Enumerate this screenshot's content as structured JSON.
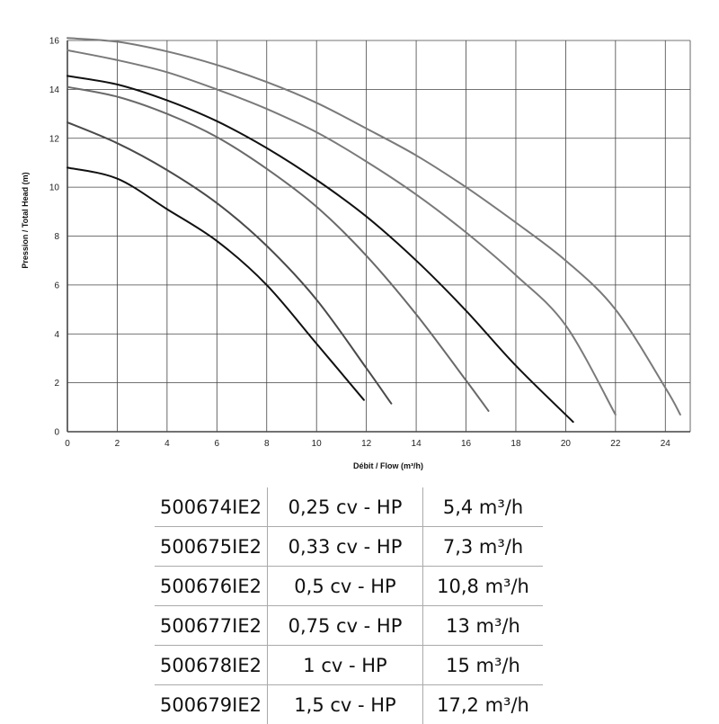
{
  "chart_data": {
    "type": "line",
    "title": "",
    "xlabel": "Débit / Flow (m³/h)",
    "ylabel": "Pression / Total Head (m)",
    "xlim": [
      0,
      25
    ],
    "ylim": [
      0,
      16.5
    ],
    "x_ticks": [
      "0",
      "2",
      "4",
      "6",
      "8",
      "10",
      "12",
      "14",
      "16",
      "18",
      "20",
      "22",
      "24"
    ],
    "y_ticks": [
      "0",
      "2",
      "4",
      "6",
      "8",
      "10",
      "12",
      "14",
      "16"
    ],
    "grid": true,
    "series": [
      {
        "color": "#111111",
        "points": [
          [
            0,
            10.8
          ],
          [
            2,
            10.35
          ],
          [
            4,
            9.1
          ],
          [
            6,
            7.8
          ],
          [
            8,
            6.0
          ],
          [
            10,
            3.6
          ],
          [
            11.9,
            1.3
          ]
        ]
      },
      {
        "color": "#4a4a4a",
        "points": [
          [
            0,
            12.65
          ],
          [
            2,
            11.8
          ],
          [
            4,
            10.7
          ],
          [
            6,
            9.35
          ],
          [
            8,
            7.6
          ],
          [
            10,
            5.4
          ],
          [
            12,
            2.6
          ],
          [
            13,
            1.15
          ]
        ]
      },
      {
        "color": "#6a6a6a",
        "points": [
          [
            0,
            14.1
          ],
          [
            2,
            13.7
          ],
          [
            4,
            13.0
          ],
          [
            6,
            12.05
          ],
          [
            8,
            10.75
          ],
          [
            10,
            9.2
          ],
          [
            12,
            7.2
          ],
          [
            14,
            4.8
          ],
          [
            16,
            2.1
          ],
          [
            16.9,
            0.85
          ]
        ]
      },
      {
        "color": "#111111",
        "points": [
          [
            0,
            14.55
          ],
          [
            2,
            14.2
          ],
          [
            4,
            13.55
          ],
          [
            6,
            12.7
          ],
          [
            8,
            11.6
          ],
          [
            10,
            10.3
          ],
          [
            12,
            8.8
          ],
          [
            14,
            7.0
          ],
          [
            16,
            4.95
          ],
          [
            18,
            2.7
          ],
          [
            20.3,
            0.4
          ]
        ]
      },
      {
        "color": "#7a7a7a",
        "points": [
          [
            0,
            15.6
          ],
          [
            2,
            15.2
          ],
          [
            4,
            14.7
          ],
          [
            6,
            14.0
          ],
          [
            8,
            13.2
          ],
          [
            10,
            12.25
          ],
          [
            12,
            11.05
          ],
          [
            14,
            9.7
          ],
          [
            16,
            8.15
          ],
          [
            18,
            6.4
          ],
          [
            20,
            4.35
          ],
          [
            22,
            0.7
          ]
        ]
      },
      {
        "color": "#7a7a7a",
        "points": [
          [
            0,
            16.1
          ],
          [
            2,
            15.95
          ],
          [
            4,
            15.55
          ],
          [
            6,
            15.0
          ],
          [
            8,
            14.3
          ],
          [
            10,
            13.45
          ],
          [
            12,
            12.4
          ],
          [
            14,
            11.3
          ],
          [
            16,
            10.0
          ],
          [
            18,
            8.55
          ],
          [
            20,
            7.0
          ],
          [
            22,
            5.0
          ],
          [
            24,
            1.8
          ],
          [
            24.6,
            0.7
          ]
        ]
      }
    ]
  },
  "table": {
    "rows": [
      {
        "ref": "500674IE2",
        "power": "0,25 cv - HP",
        "flow": "5,4 m³/h"
      },
      {
        "ref": "500675IE2",
        "power": "0,33 cv - HP",
        "flow": "7,3 m³/h"
      },
      {
        "ref": "500676IE2",
        "power": "0,5 cv - HP",
        "flow": "10,8 m³/h"
      },
      {
        "ref": "500677IE2",
        "power": "0,75 cv - HP",
        "flow": "13 m³/h"
      },
      {
        "ref": "500678IE2",
        "power": "1 cv - HP",
        "flow": "15 m³/h"
      },
      {
        "ref": "500679IE2",
        "power": "1,5 cv - HP",
        "flow": "17,2 m³/h"
      }
    ]
  }
}
